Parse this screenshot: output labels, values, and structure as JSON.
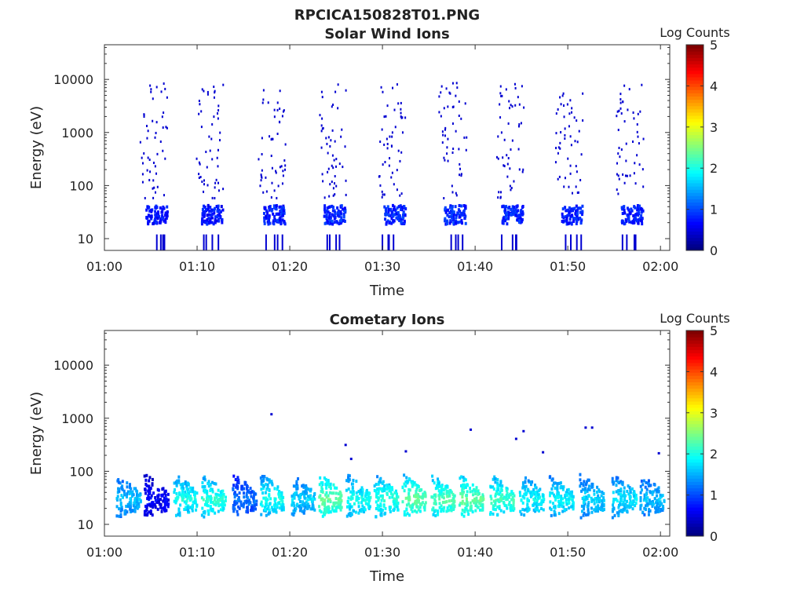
{
  "page": {
    "file_title": "RPCICA150828T01.PNG"
  },
  "chart_data": [
    {
      "type": "heatmap",
      "title": "Solar Wind Ions",
      "xlabel": "Time",
      "ylabel": "Energy (eV)",
      "x_ticks": [
        "01:00",
        "01:10",
        "01:20",
        "01:30",
        "01:40",
        "01:50",
        "02:00"
      ],
      "x_range_minutes": [
        0,
        61
      ],
      "y_ticks": [
        "10",
        "100",
        "1000",
        "10000"
      ],
      "y_scale": "log",
      "y_range": [
        6,
        45000
      ],
      "colorbar": {
        "label": "Log Counts",
        "range": [
          0,
          5
        ],
        "ticks": [
          "0",
          "1",
          "2",
          "3",
          "4",
          "5"
        ]
      },
      "clusters": [
        {
          "t": 5.4,
          "level": 0.7
        },
        {
          "t": 11.4,
          "level": 0.7
        },
        {
          "t": 18.1,
          "level": 0.75
        },
        {
          "t": 24.6,
          "level": 0.8
        },
        {
          "t": 31.1,
          "level": 0.8
        },
        {
          "t": 37.6,
          "level": 0.8
        },
        {
          "t": 43.8,
          "level": 0.8
        },
        {
          "t": 50.2,
          "level": 0.75
        },
        {
          "t": 56.7,
          "level": 0.75
        }
      ]
    },
    {
      "type": "heatmap",
      "title": "Cometary Ions",
      "xlabel": "Time",
      "ylabel": "Energy (eV)",
      "x_ticks": [
        "01:00",
        "01:10",
        "01:20",
        "01:30",
        "01:40",
        "01:50",
        "02:00"
      ],
      "x_range_minutes": [
        0,
        61
      ],
      "y_ticks": [
        "10",
        "100",
        "1000",
        "10000"
      ],
      "y_scale": "log",
      "y_range": [
        6,
        45000
      ],
      "colorbar": {
        "label": "Log Counts",
        "range": [
          0,
          5
        ],
        "ticks": [
          "0",
          "1",
          "2",
          "3",
          "4",
          "5"
        ]
      },
      "clusters": [
        {
          "t": 2.5,
          "level": 1.6
        },
        {
          "t": 5.5,
          "level": 0.6
        },
        {
          "t": 8.7,
          "level": 2.0
        },
        {
          "t": 11.7,
          "level": 2.1
        },
        {
          "t": 15.0,
          "level": 1.2
        },
        {
          "t": 18.0,
          "level": 2.0
        },
        {
          "t": 21.3,
          "level": 1.7
        },
        {
          "t": 24.3,
          "level": 2.4
        },
        {
          "t": 27.3,
          "level": 2.0
        },
        {
          "t": 30.3,
          "level": 2.1
        },
        {
          "t": 33.3,
          "level": 2.4
        },
        {
          "t": 36.4,
          "level": 2.3
        },
        {
          "t": 39.5,
          "level": 2.4
        },
        {
          "t": 42.8,
          "level": 2.2
        },
        {
          "t": 46.0,
          "level": 1.9
        },
        {
          "t": 49.2,
          "level": 1.9
        },
        {
          "t": 52.5,
          "level": 1.7
        },
        {
          "t": 56.0,
          "level": 1.8
        },
        {
          "t": 59.0,
          "level": 1.6
        }
      ],
      "outliers": [
        {
          "t": 17.9,
          "e": 1250
        },
        {
          "t": 39.4,
          "e": 640
        },
        {
          "t": 45.1,
          "e": 600
        },
        {
          "t": 44.3,
          "e": 430
        },
        {
          "t": 51.8,
          "e": 700
        },
        {
          "t": 52.5,
          "e": 700
        },
        {
          "t": 25.9,
          "e": 330
        },
        {
          "t": 47.2,
          "e": 240
        },
        {
          "t": 32.4,
          "e": 250
        },
        {
          "t": 59.7,
          "e": 230
        },
        {
          "t": 26.5,
          "e": 180
        }
      ]
    }
  ]
}
